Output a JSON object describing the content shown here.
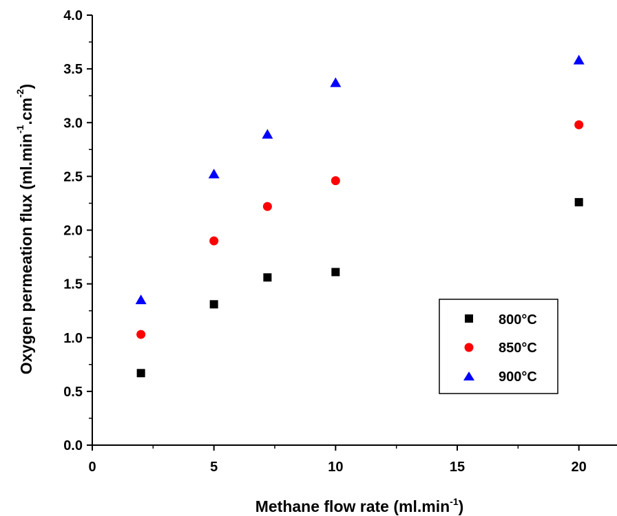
{
  "chart_data": {
    "type": "scatter",
    "xlabel": "Methane flow rate (ml.min",
    "xlabel_sup": "-1",
    "xlabel_end": ")",
    "ylabel": "Oxygen permeation flux (ml.min",
    "ylabel_sup1": "-1",
    "ylabel_mid": ".cm",
    "ylabel_sup2": "-2",
    "ylabel_end": ")",
    "xlim": [
      0,
      21
    ],
    "ylim": [
      0,
      4
    ],
    "xticks": [
      0,
      5,
      10,
      15,
      20
    ],
    "xtick_labels": [
      "0",
      "5",
      "10",
      "15",
      "20"
    ],
    "yticks": [
      0,
      0.5,
      1,
      1.5,
      2,
      2.5,
      3,
      3.5,
      4
    ],
    "ytick_labels": [
      "0.0",
      "0.5",
      "1.0",
      "1.5",
      "2.0",
      "2.5",
      "3.0",
      "3.5",
      "4.0"
    ],
    "grid": false,
    "legend_position": "bottom-right",
    "series": [
      {
        "name": "800°C",
        "marker": "square",
        "color": "#000000",
        "x": [
          2,
          5,
          7.2,
          10,
          20
        ],
        "y": [
          0.67,
          1.31,
          1.56,
          1.61,
          2.26
        ]
      },
      {
        "name": "850°C",
        "marker": "circle",
        "color": "#ff0000",
        "x": [
          2,
          5,
          7.2,
          10,
          20
        ],
        "y": [
          1.03,
          1.9,
          2.22,
          2.46,
          2.98
        ]
      },
      {
        "name": "900°C",
        "marker": "triangle",
        "color": "#0000ff",
        "x": [
          2,
          5,
          7.2,
          10,
          20
        ],
        "y": [
          1.35,
          2.52,
          2.89,
          3.37,
          3.58
        ]
      }
    ]
  }
}
